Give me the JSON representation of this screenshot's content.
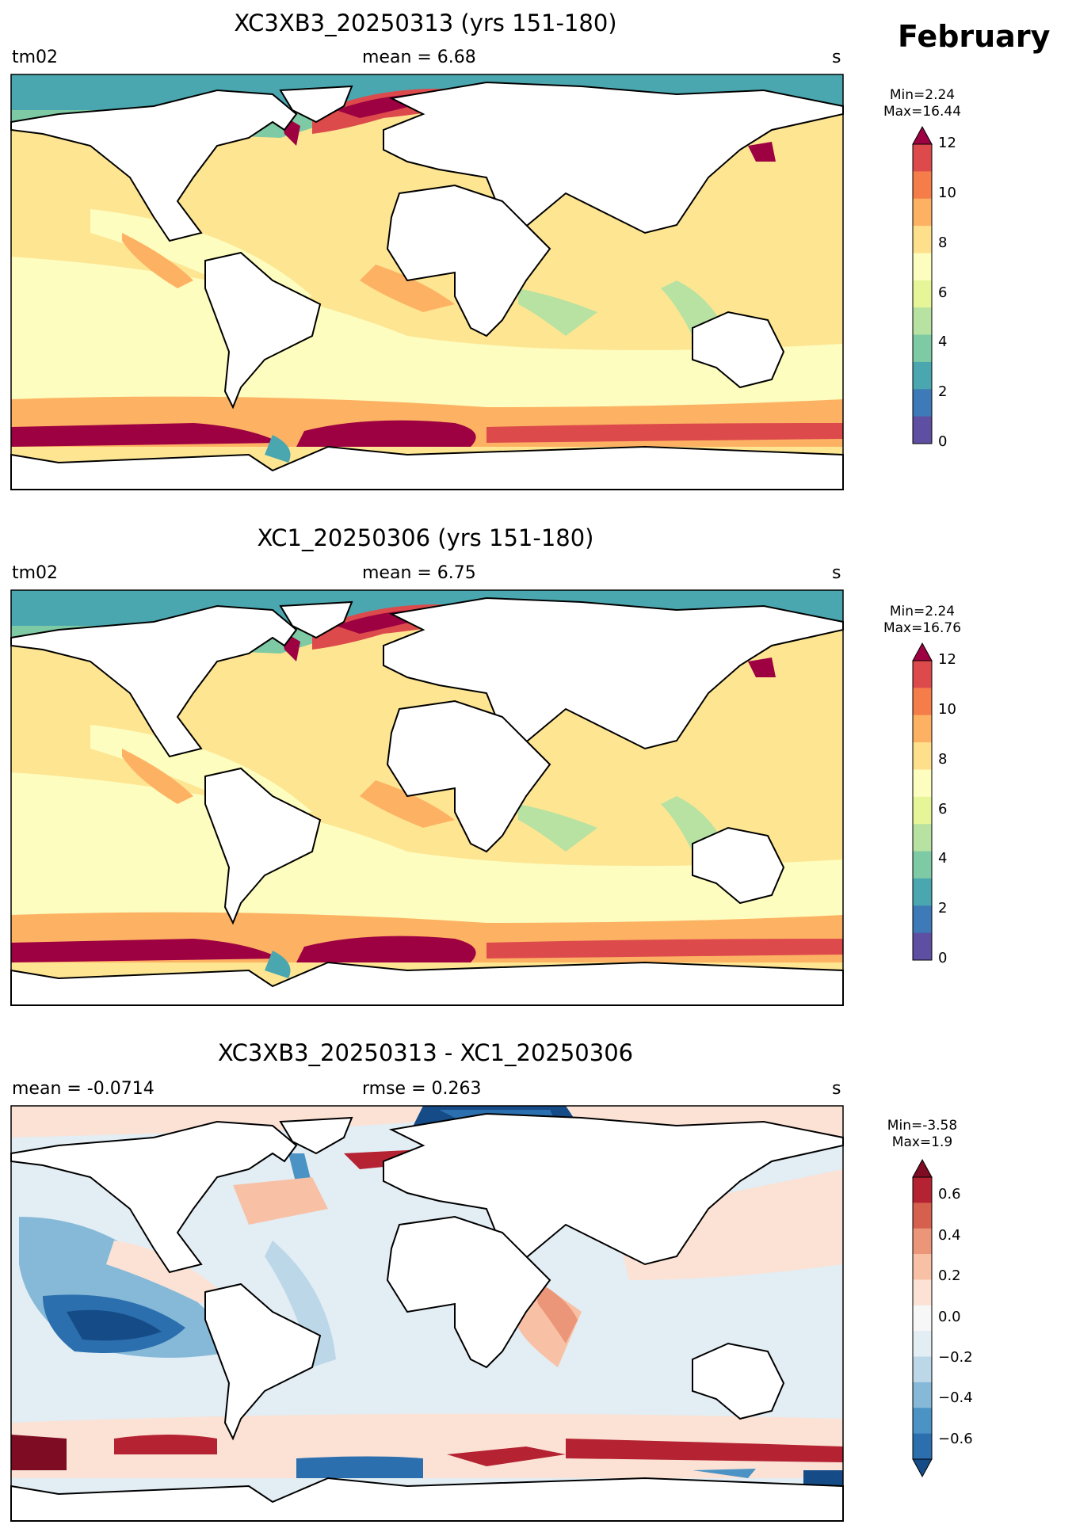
{
  "figure": {
    "month": "February"
  },
  "panels": [
    {
      "title": "XC3XB3_20250313 (yrs 151-180)",
      "left_label": "tm02",
      "center_label": "mean = 6.68",
      "right_label": "s",
      "colorbar": {
        "min_text": "Min=2.24",
        "max_text": "Max=16.44",
        "ticks": [
          "0",
          "2",
          "4",
          "6",
          "8",
          "10",
          "12"
        ],
        "range": [
          0,
          12
        ],
        "extend": "max",
        "colors": [
          "#5e4fa2",
          "#3d7ab7",
          "#4aa7b0",
          "#7dcaa4",
          "#b7e2a1",
          "#e6f598",
          "#fdfdbf",
          "#fedf8b",
          "#fdb263",
          "#f57d4a",
          "#dd4a4c",
          "#9e0142"
        ]
      }
    },
    {
      "title": "XC1_20250306 (yrs 151-180)",
      "left_label": "tm02",
      "center_label": "mean = 6.75",
      "right_label": "s",
      "colorbar": {
        "min_text": "Min=2.24",
        "max_text": "Max=16.76",
        "ticks": [
          "0",
          "2",
          "4",
          "6",
          "8",
          "10",
          "12"
        ],
        "range": [
          0,
          12
        ],
        "extend": "max",
        "colors": [
          "#5e4fa2",
          "#3d7ab7",
          "#4aa7b0",
          "#7dcaa4",
          "#b7e2a1",
          "#e6f598",
          "#fdfdbf",
          "#fedf8b",
          "#fdb263",
          "#f57d4a",
          "#dd4a4c",
          "#9e0142"
        ]
      }
    },
    {
      "title": "XC3XB3_20250313 - XC1_20250306",
      "left_label": "mean = -0.0714",
      "center_label": "rmse = 0.263",
      "right_label": "s",
      "colorbar": {
        "min_text": "Min=-3.58",
        "max_text": "Max=1.9",
        "ticks": [
          "−0.6",
          "−0.4",
          "−0.2",
          "0.0",
          "0.2",
          "0.4",
          "0.6"
        ],
        "range": [
          -0.7,
          0.7
        ],
        "extend": "both",
        "colors": [
          "#154b86",
          "#2b6fae",
          "#4a93c4",
          "#86b9d8",
          "#bcd7e8",
          "#e2edf4",
          "#f7f7f7",
          "#fbe2d5",
          "#f8c1a6",
          "#eb9679",
          "#d5604e",
          "#b52232",
          "#7e0c22"
        ]
      }
    }
  ]
}
